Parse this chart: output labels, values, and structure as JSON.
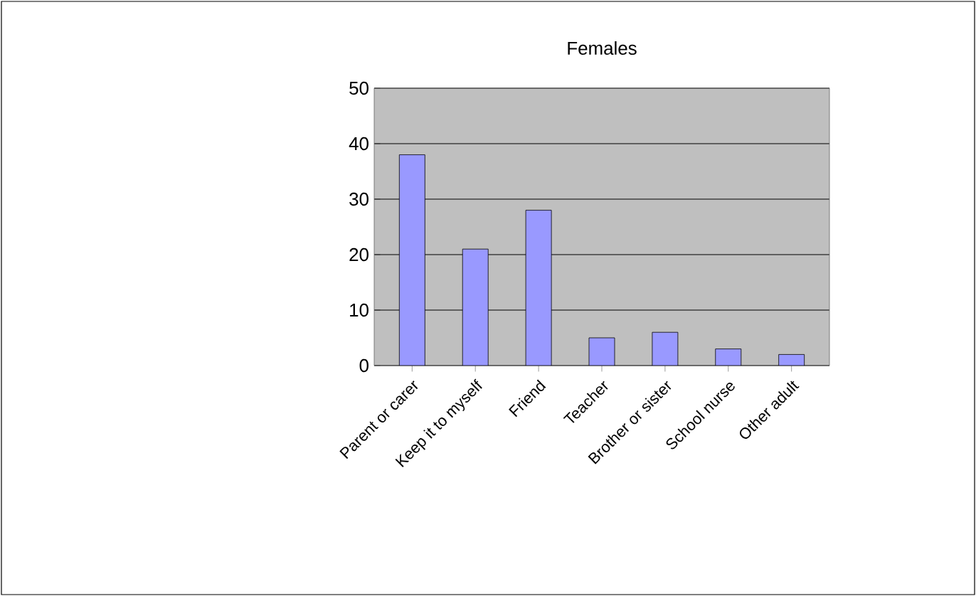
{
  "chart_data": {
    "type": "bar",
    "title": "Females",
    "categories": [
      "Parent or carer",
      "Keep it to myself",
      "Friend",
      "Teacher",
      "Brother or sister",
      "School nurse",
      "Other adult"
    ],
    "values": [
      38,
      21,
      28,
      5,
      6,
      3,
      2
    ],
    "color": "#9999ff",
    "ylim": [
      0,
      50
    ],
    "yticks": [
      0,
      10,
      20,
      30,
      40,
      50
    ],
    "grid": "y"
  }
}
